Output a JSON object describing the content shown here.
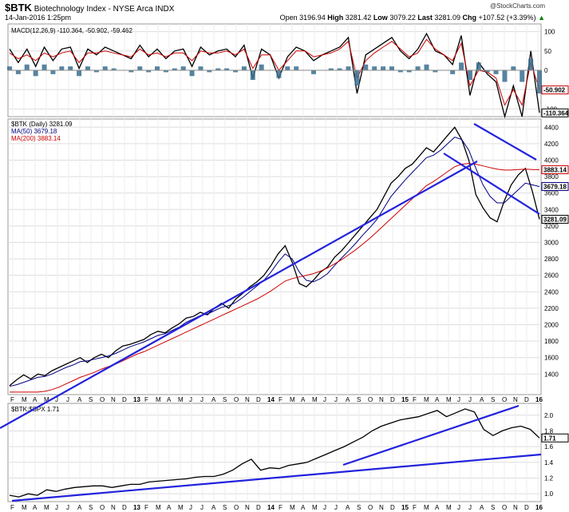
{
  "header": {
    "symbol": "$BTK",
    "title": "Biotechnology Index - NYSE Arca",
    "exchange": "INDX",
    "datetime": "14-Jan-2016 1:25pm",
    "watermark": "@StockCharts.com",
    "open_label": "Open",
    "open": "3196.94",
    "high_label": "High",
    "high": "3281.42",
    "low_label": "Low",
    "low": "3079.22",
    "last_label": "Last",
    "last": "3281.09",
    "chg_label": "Chg",
    "chg": "+107.52 (+3.39%)",
    "chg_arrow": "▲"
  },
  "chart_data": [
    {
      "panel": "macd",
      "type": "line",
      "legend": "MACD(12,26,9) -110.364, -50.902, -59.462",
      "y_ticks": [
        "100",
        "50",
        "0",
        "-50",
        "-100"
      ],
      "last_labels": [
        "-50.902",
        "-110.364"
      ],
      "ylim": [
        -120,
        120
      ],
      "grid": true,
      "series": [
        {
          "name": "MACD(12,26,9)",
          "color": "#000000",
          "values": [
            55,
            20,
            55,
            10,
            60,
            25,
            55,
            60,
            5,
            55,
            40,
            60,
            50,
            40,
            30,
            65,
            35,
            55,
            30,
            50,
            55,
            10,
            60,
            40,
            50,
            55,
            35,
            65,
            -20,
            55,
            40,
            -20,
            35,
            60,
            50,
            25,
            40,
            50,
            60,
            85,
            -60,
            40,
            55,
            70,
            85,
            50,
            30,
            55,
            95,
            50,
            40,
            15,
            90,
            -65,
            20,
            -10,
            -30,
            -120,
            -40,
            -120,
            50,
            -110
          ]
        },
        {
          "name": "signal",
          "color": "#cc0000",
          "values": [
            45,
            30,
            40,
            25,
            45,
            35,
            45,
            50,
            20,
            45,
            45,
            50,
            45,
            40,
            35,
            55,
            40,
            45,
            35,
            45,
            45,
            25,
            50,
            45,
            45,
            50,
            40,
            55,
            5,
            40,
            40,
            0,
            25,
            50,
            50,
            35,
            40,
            45,
            55,
            75,
            -20,
            25,
            45,
            60,
            75,
            55,
            35,
            45,
            80,
            55,
            40,
            25,
            70,
            -40,
            0,
            -5,
            -20,
            -90,
            -50,
            -90,
            20,
            -50
          ]
        }
      ]
    },
    {
      "panel": "price",
      "type": "line",
      "legend": [
        "$BTK (Daily) 3281.09",
        "MA(50) 3679.18",
        "MA(200) 3883.14"
      ],
      "y_ticks": [
        "4400",
        "4200",
        "4000",
        "3800",
        "3600",
        "3400",
        "3200",
        "3000",
        "2800",
        "2600",
        "2400",
        "2200",
        "2000",
        "1800",
        "1600",
        "1400"
      ],
      "ylim": [
        1150,
        4500
      ],
      "grid": true,
      "last_labels": [
        "3883.14",
        "3679.18",
        "3281.09"
      ],
      "x_ticks": [
        "F",
        "M",
        "A",
        "M",
        "J",
        "J",
        "A",
        "S",
        "O",
        "N",
        "D",
        "13",
        "F",
        "M",
        "A",
        "M",
        "J",
        "J",
        "A",
        "S",
        "O",
        "N",
        "D",
        "14",
        "F",
        "M",
        "A",
        "M",
        "J",
        "J",
        "A",
        "S",
        "O",
        "N",
        "D",
        "15",
        "F",
        "M",
        "A",
        "M",
        "J",
        "J",
        "A",
        "S",
        "O",
        "N",
        "D",
        "16"
      ],
      "series": [
        {
          "name": "$BTK (Daily)",
          "color": "#000000",
          "values": [
            1260,
            1330,
            1390,
            1340,
            1400,
            1380,
            1440,
            1480,
            1520,
            1560,
            1600,
            1540,
            1600,
            1640,
            1600,
            1680,
            1740,
            1760,
            1790,
            1820,
            1880,
            1920,
            1900,
            1960,
            2010,
            2080,
            2100,
            2150,
            2120,
            2200,
            2260,
            2200,
            2310,
            2380,
            2460,
            2520,
            2600,
            2720,
            2860,
            2960,
            2760,
            2500,
            2460,
            2540,
            2640,
            2700,
            2820,
            2900,
            3000,
            3100,
            3200,
            3300,
            3400,
            3560,
            3720,
            3800,
            3900,
            3950,
            4050,
            4150,
            4100,
            4200,
            4300,
            4400,
            4250,
            4000,
            3580,
            3420,
            3300,
            3250,
            3500,
            3700,
            3820,
            3900,
            3620,
            3281
          ]
        },
        {
          "name": "MA(50)",
          "color": "#000080",
          "values": [
            1250,
            1270,
            1300,
            1330,
            1360,
            1370,
            1400,
            1440,
            1480,
            1510,
            1550,
            1560,
            1580,
            1600,
            1620,
            1650,
            1690,
            1730,
            1760,
            1790,
            1830,
            1870,
            1890,
            1930,
            1970,
            2030,
            2070,
            2110,
            2130,
            2170,
            2210,
            2230,
            2270,
            2330,
            2400,
            2470,
            2540,
            2640,
            2760,
            2860,
            2800,
            2640,
            2540,
            2520,
            2560,
            2620,
            2720,
            2810,
            2900,
            2990,
            3090,
            3180,
            3280,
            3420,
            3560,
            3660,
            3760,
            3850,
            3940,
            4030,
            4060,
            4120,
            4200,
            4280,
            4250,
            4120,
            3900,
            3700,
            3560,
            3480,
            3480,
            3560,
            3640,
            3720,
            3700,
            3679
          ]
        },
        {
          "name": "MA(200)",
          "color": "#cc0000",
          "values": [
            1180,
            1180,
            1180,
            1180,
            1180,
            1190,
            1210,
            1240,
            1280,
            1320,
            1360,
            1390,
            1420,
            1460,
            1490,
            1520,
            1560,
            1600,
            1640,
            1670,
            1710,
            1750,
            1790,
            1830,
            1870,
            1910,
            1950,
            1990,
            2030,
            2070,
            2110,
            2150,
            2190,
            2230,
            2270,
            2310,
            2360,
            2410,
            2470,
            2530,
            2560,
            2580,
            2600,
            2620,
            2650,
            2690,
            2740,
            2790,
            2850,
            2910,
            2980,
            3050,
            3130,
            3210,
            3290,
            3370,
            3450,
            3530,
            3610,
            3690,
            3740,
            3800,
            3860,
            3920,
            3950,
            3960,
            3950,
            3930,
            3910,
            3890,
            3880,
            3880,
            3885,
            3890,
            3886,
            3883
          ]
        }
      ],
      "trendlines": "blue"
    },
    {
      "panel": "ratio",
      "type": "line",
      "legend": "$BTK:$SPX 1.71",
      "y_ticks": [
        "2.0",
        "1.8",
        "1.6",
        "1.4",
        "1.2",
        "1.0"
      ],
      "ylim": [
        0.9,
        2.15
      ],
      "grid": true,
      "last_labels": [
        "1.71"
      ],
      "x_ticks": [
        "F",
        "M",
        "A",
        "M",
        "J",
        "J",
        "A",
        "S",
        "O",
        "N",
        "D",
        "13",
        "F",
        "M",
        "A",
        "M",
        "J",
        "J",
        "A",
        "S",
        "O",
        "N",
        "D",
        "14",
        "F",
        "M",
        "A",
        "M",
        "J",
        "J",
        "A",
        "S",
        "O",
        "N",
        "D",
        "15",
        "F",
        "M",
        "A",
        "M",
        "J",
        "J",
        "A",
        "S",
        "O",
        "N",
        "D",
        "16"
      ],
      "series": [
        {
          "name": "$BTK:$SPX",
          "color": "#000000",
          "values": [
            0.98,
            0.96,
            1.0,
            0.98,
            1.05,
            1.03,
            1.06,
            1.08,
            1.09,
            1.1,
            1.1,
            1.08,
            1.1,
            1.12,
            1.12,
            1.15,
            1.16,
            1.17,
            1.18,
            1.19,
            1.21,
            1.22,
            1.22,
            1.25,
            1.3,
            1.38,
            1.44,
            1.3,
            1.33,
            1.32,
            1.36,
            1.38,
            1.4,
            1.45,
            1.5,
            1.55,
            1.6,
            1.66,
            1.72,
            1.8,
            1.86,
            1.9,
            1.94,
            1.96,
            1.98,
            2.02,
            2.06,
            1.98,
            2.03,
            2.08,
            2.04,
            1.82,
            1.74,
            1.8,
            1.84,
            1.86,
            1.82,
            1.71
          ]
        }
      ]
    }
  ]
}
